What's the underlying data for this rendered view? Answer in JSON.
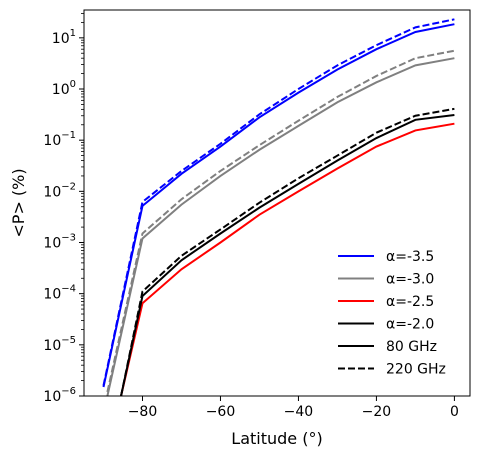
{
  "chart_data": {
    "type": "line",
    "xlabel": "Latitude (°)",
    "ylabel": "<P> (%)",
    "x_ticks": [
      -80,
      -60,
      -40,
      -20,
      0
    ],
    "x_tick_labels": [
      "−80",
      "−60",
      "−40",
      "−20",
      "0"
    ],
    "y_ticks": [
      {
        "value": 1e-06,
        "base": "10",
        "exp": "−6"
      },
      {
        "value": 1e-05,
        "base": "10",
        "exp": "−5"
      },
      {
        "value": 0.0001,
        "base": "10",
        "exp": "−4"
      },
      {
        "value": 0.001,
        "base": "10",
        "exp": "−3"
      },
      {
        "value": 0.01,
        "base": "10",
        "exp": "−2"
      },
      {
        "value": 0.1,
        "base": "10",
        "exp": "−1"
      },
      {
        "value": 1,
        "base": "10",
        "exp": "0"
      },
      {
        "value": 10,
        "base": "10",
        "exp": "1"
      }
    ],
    "xlim": [
      -95,
      4
    ],
    "ylim": [
      1e-06,
      35
    ],
    "yscale": "log",
    "grid": false,
    "legend_position": "lower right",
    "legend": [
      {
        "label": "α=-3.5",
        "color": "#0000ff",
        "dash": "solid"
      },
      {
        "label": "α=-3.0",
        "color": "#808080",
        "dash": "solid"
      },
      {
        "label": "α=-2.5",
        "color": "#ff0000",
        "dash": "solid"
      },
      {
        "label": "α=-2.0",
        "color": "#000000",
        "dash": "solid"
      },
      {
        "label": "80 GHz",
        "color": "#000000",
        "dash": "solid"
      },
      {
        "label": "220 GHz",
        "color": "#000000",
        "dash": "dashed"
      }
    ],
    "series": [
      {
        "alpha": "α=-3.5",
        "frequency": "80 GHz",
        "color": "#0000ff",
        "dash": "solid",
        "points": [
          [
            -90,
            1.5e-06
          ],
          [
            -80,
            0.0052
          ],
          [
            -70,
            0.022
          ],
          [
            -60,
            0.075
          ],
          [
            -50,
            0.28
          ],
          [
            -40,
            0.85
          ],
          [
            -30,
            2.4
          ],
          [
            -20,
            6.0
          ],
          [
            -10,
            13
          ],
          [
            0,
            18.5
          ]
        ]
      },
      {
        "alpha": "α=-3.5",
        "frequency": "220 GHz",
        "color": "#0000ff",
        "dash": "dashed",
        "points": [
          [
            -90,
            1.6e-06
          ],
          [
            -80,
            0.0062
          ],
          [
            -70,
            0.025
          ],
          [
            -60,
            0.085
          ],
          [
            -50,
            0.32
          ],
          [
            -40,
            1.0
          ],
          [
            -30,
            2.9
          ],
          [
            -20,
            7.2
          ],
          [
            -10,
            16
          ],
          [
            0,
            23
          ]
        ]
      },
      {
        "alpha": "α=-3.0",
        "frequency": "80 GHz",
        "color": "#808080",
        "dash": "solid",
        "points": [
          [
            -89,
            1e-06
          ],
          [
            -80,
            0.0012
          ],
          [
            -70,
            0.0055
          ],
          [
            -60,
            0.02
          ],
          [
            -50,
            0.065
          ],
          [
            -40,
            0.19
          ],
          [
            -30,
            0.55
          ],
          [
            -20,
            1.35
          ],
          [
            -10,
            2.9
          ],
          [
            0,
            4.0
          ]
        ]
      },
      {
        "alpha": "α=-3.0",
        "frequency": "220 GHz",
        "color": "#808080",
        "dash": "dashed",
        "points": [
          [
            -89,
            1.2e-06
          ],
          [
            -80,
            0.0015
          ],
          [
            -70,
            0.007
          ],
          [
            -60,
            0.025
          ],
          [
            -50,
            0.08
          ],
          [
            -40,
            0.24
          ],
          [
            -30,
            0.7
          ],
          [
            -20,
            1.8
          ],
          [
            -10,
            4.0
          ],
          [
            0,
            5.6
          ]
        ]
      },
      {
        "alpha": "α=-2.5",
        "frequency": "80 GHz",
        "color": "#ff0000",
        "dash": "solid",
        "points": [
          [
            -85.5,
            1e-06
          ],
          [
            -80,
            6.5e-05
          ],
          [
            -70,
            0.0003
          ],
          [
            -60,
            0.001
          ],
          [
            -50,
            0.0035
          ],
          [
            -40,
            0.01
          ],
          [
            -30,
            0.028
          ],
          [
            -20,
            0.075
          ],
          [
            -10,
            0.155
          ],
          [
            0,
            0.21
          ]
        ]
      },
      {
        "alpha": "α=-2.0",
        "frequency": "80 GHz",
        "color": "#000000",
        "dash": "solid",
        "points": [
          [
            -85.5,
            1e-06
          ],
          [
            -80,
            9e-05
          ],
          [
            -70,
            0.00045
          ],
          [
            -60,
            0.0015
          ],
          [
            -50,
            0.0048
          ],
          [
            -40,
            0.014
          ],
          [
            -30,
            0.04
          ],
          [
            -20,
            0.11
          ],
          [
            -10,
            0.25
          ],
          [
            0,
            0.31
          ]
        ]
      },
      {
        "alpha": "α=-2.0",
        "frequency": "220 GHz",
        "color": "#000000",
        "dash": "dashed",
        "points": [
          [
            -85.5,
            1e-06
          ],
          [
            -80,
            0.00011
          ],
          [
            -70,
            0.00055
          ],
          [
            -60,
            0.0018
          ],
          [
            -50,
            0.006
          ],
          [
            -40,
            0.018
          ],
          [
            -30,
            0.05
          ],
          [
            -20,
            0.14
          ],
          [
            -10,
            0.3
          ],
          [
            0,
            0.41
          ]
        ]
      }
    ]
  }
}
